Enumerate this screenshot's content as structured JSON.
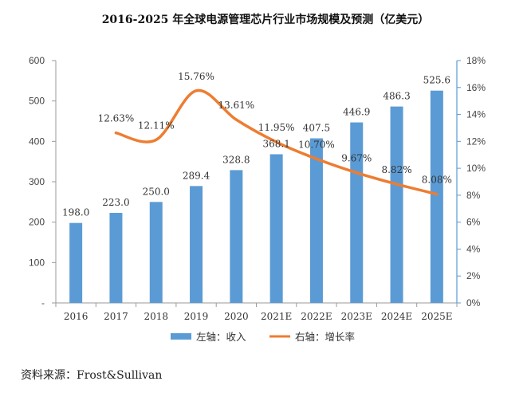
{
  "chart_data": {
    "type": "bar",
    "title": "2016-2025 年全球电源管理芯片行业市场规模及预测（亿美元）",
    "categories": [
      "2016",
      "2017",
      "2018",
      "2019",
      "2020",
      "2021E",
      "2022E",
      "2023E",
      "2024E",
      "2025E"
    ],
    "series": [
      {
        "name": "左轴：收入",
        "type": "bar",
        "axis": "left",
        "color": "#5B9BD5",
        "values": [
          198.0,
          223.0,
          250.0,
          289.4,
          328.8,
          368.1,
          407.5,
          446.9,
          486.3,
          525.6
        ],
        "labels": [
          "198.0",
          "223.0",
          "250.0",
          "289.4",
          "328.8",
          "368.1",
          "407.5",
          "446.9",
          "486.3",
          "525.6"
        ]
      },
      {
        "name": "右轴：增长率",
        "type": "line",
        "axis": "right",
        "color": "#ED7D31",
        "values": [
          null,
          12.63,
          12.11,
          15.76,
          13.61,
          11.95,
          10.7,
          9.67,
          8.82,
          8.08
        ],
        "labels": [
          "",
          "12.63%",
          "12.11%",
          "15.76%",
          "13.61%",
          "11.95%",
          "10.70%",
          "9.67%",
          "8.82%",
          "8.08%"
        ]
      }
    ],
    "y_left": {
      "ylim": [
        0,
        600
      ],
      "ticks": [
        "-",
        "100",
        "200",
        "300",
        "400",
        "500",
        "600"
      ]
    },
    "y_right": {
      "ylim": [
        0,
        18
      ],
      "ticks": [
        "0%",
        "2%",
        "4%",
        "6%",
        "8%",
        "10%",
        "12%",
        "14%",
        "16%",
        "18%"
      ]
    },
    "xlabel": "",
    "ylabel": "",
    "grid": false,
    "legend": "bottom"
  },
  "source": "资料来源：Frost&Sullivan",
  "colors": {
    "bar": "#5B9BD5",
    "line": "#ED7D31",
    "axis_left": "#6b6b6b",
    "axis_right": "#5B9BD5"
  }
}
